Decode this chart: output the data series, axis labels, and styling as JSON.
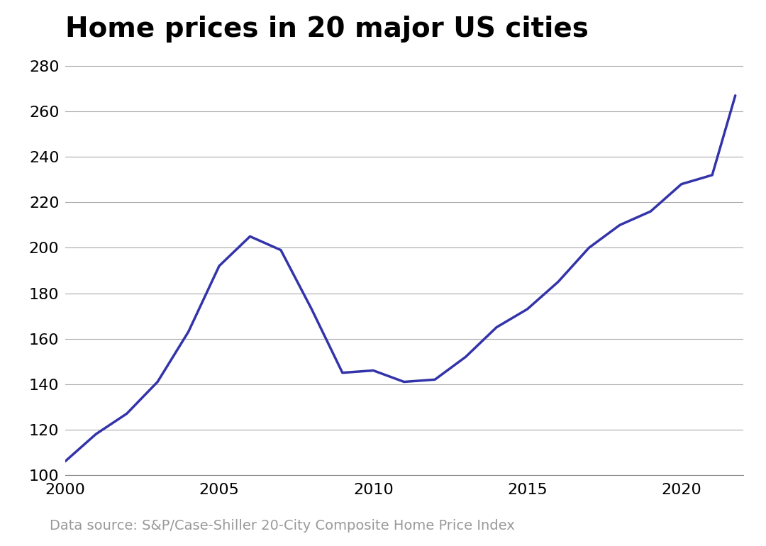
{
  "title": "Home prices in 20 major US cities",
  "source": "Data source: S&P/Case-Shiller 20-City Composite Home Price Index",
  "line_color": "#3333aa",
  "background_color": "#ffffff",
  "grid_color": "#aaaaaa",
  "source_color": "#999999",
  "x": [
    2000,
    2001,
    2002,
    2003,
    2004,
    2005,
    2006,
    2007,
    2008,
    2009,
    2010,
    2011,
    2012,
    2013,
    2014,
    2015,
    2016,
    2017,
    2018,
    2019,
    2020,
    2021,
    2021.75
  ],
  "y": [
    106,
    118,
    127,
    141,
    163,
    192,
    205,
    199,
    173,
    145,
    146,
    141,
    142,
    152,
    165,
    173,
    185,
    200,
    210,
    216,
    228,
    232,
    267
  ],
  "xlim": [
    2000,
    2022
  ],
  "ylim": [
    100,
    285
  ],
  "yticks": [
    100,
    120,
    140,
    160,
    180,
    200,
    220,
    240,
    260,
    280
  ],
  "xticks": [
    2000,
    2005,
    2010,
    2015,
    2020
  ],
  "title_fontsize": 28,
  "tick_fontsize": 16,
  "source_fontsize": 14,
  "line_width": 2.5
}
